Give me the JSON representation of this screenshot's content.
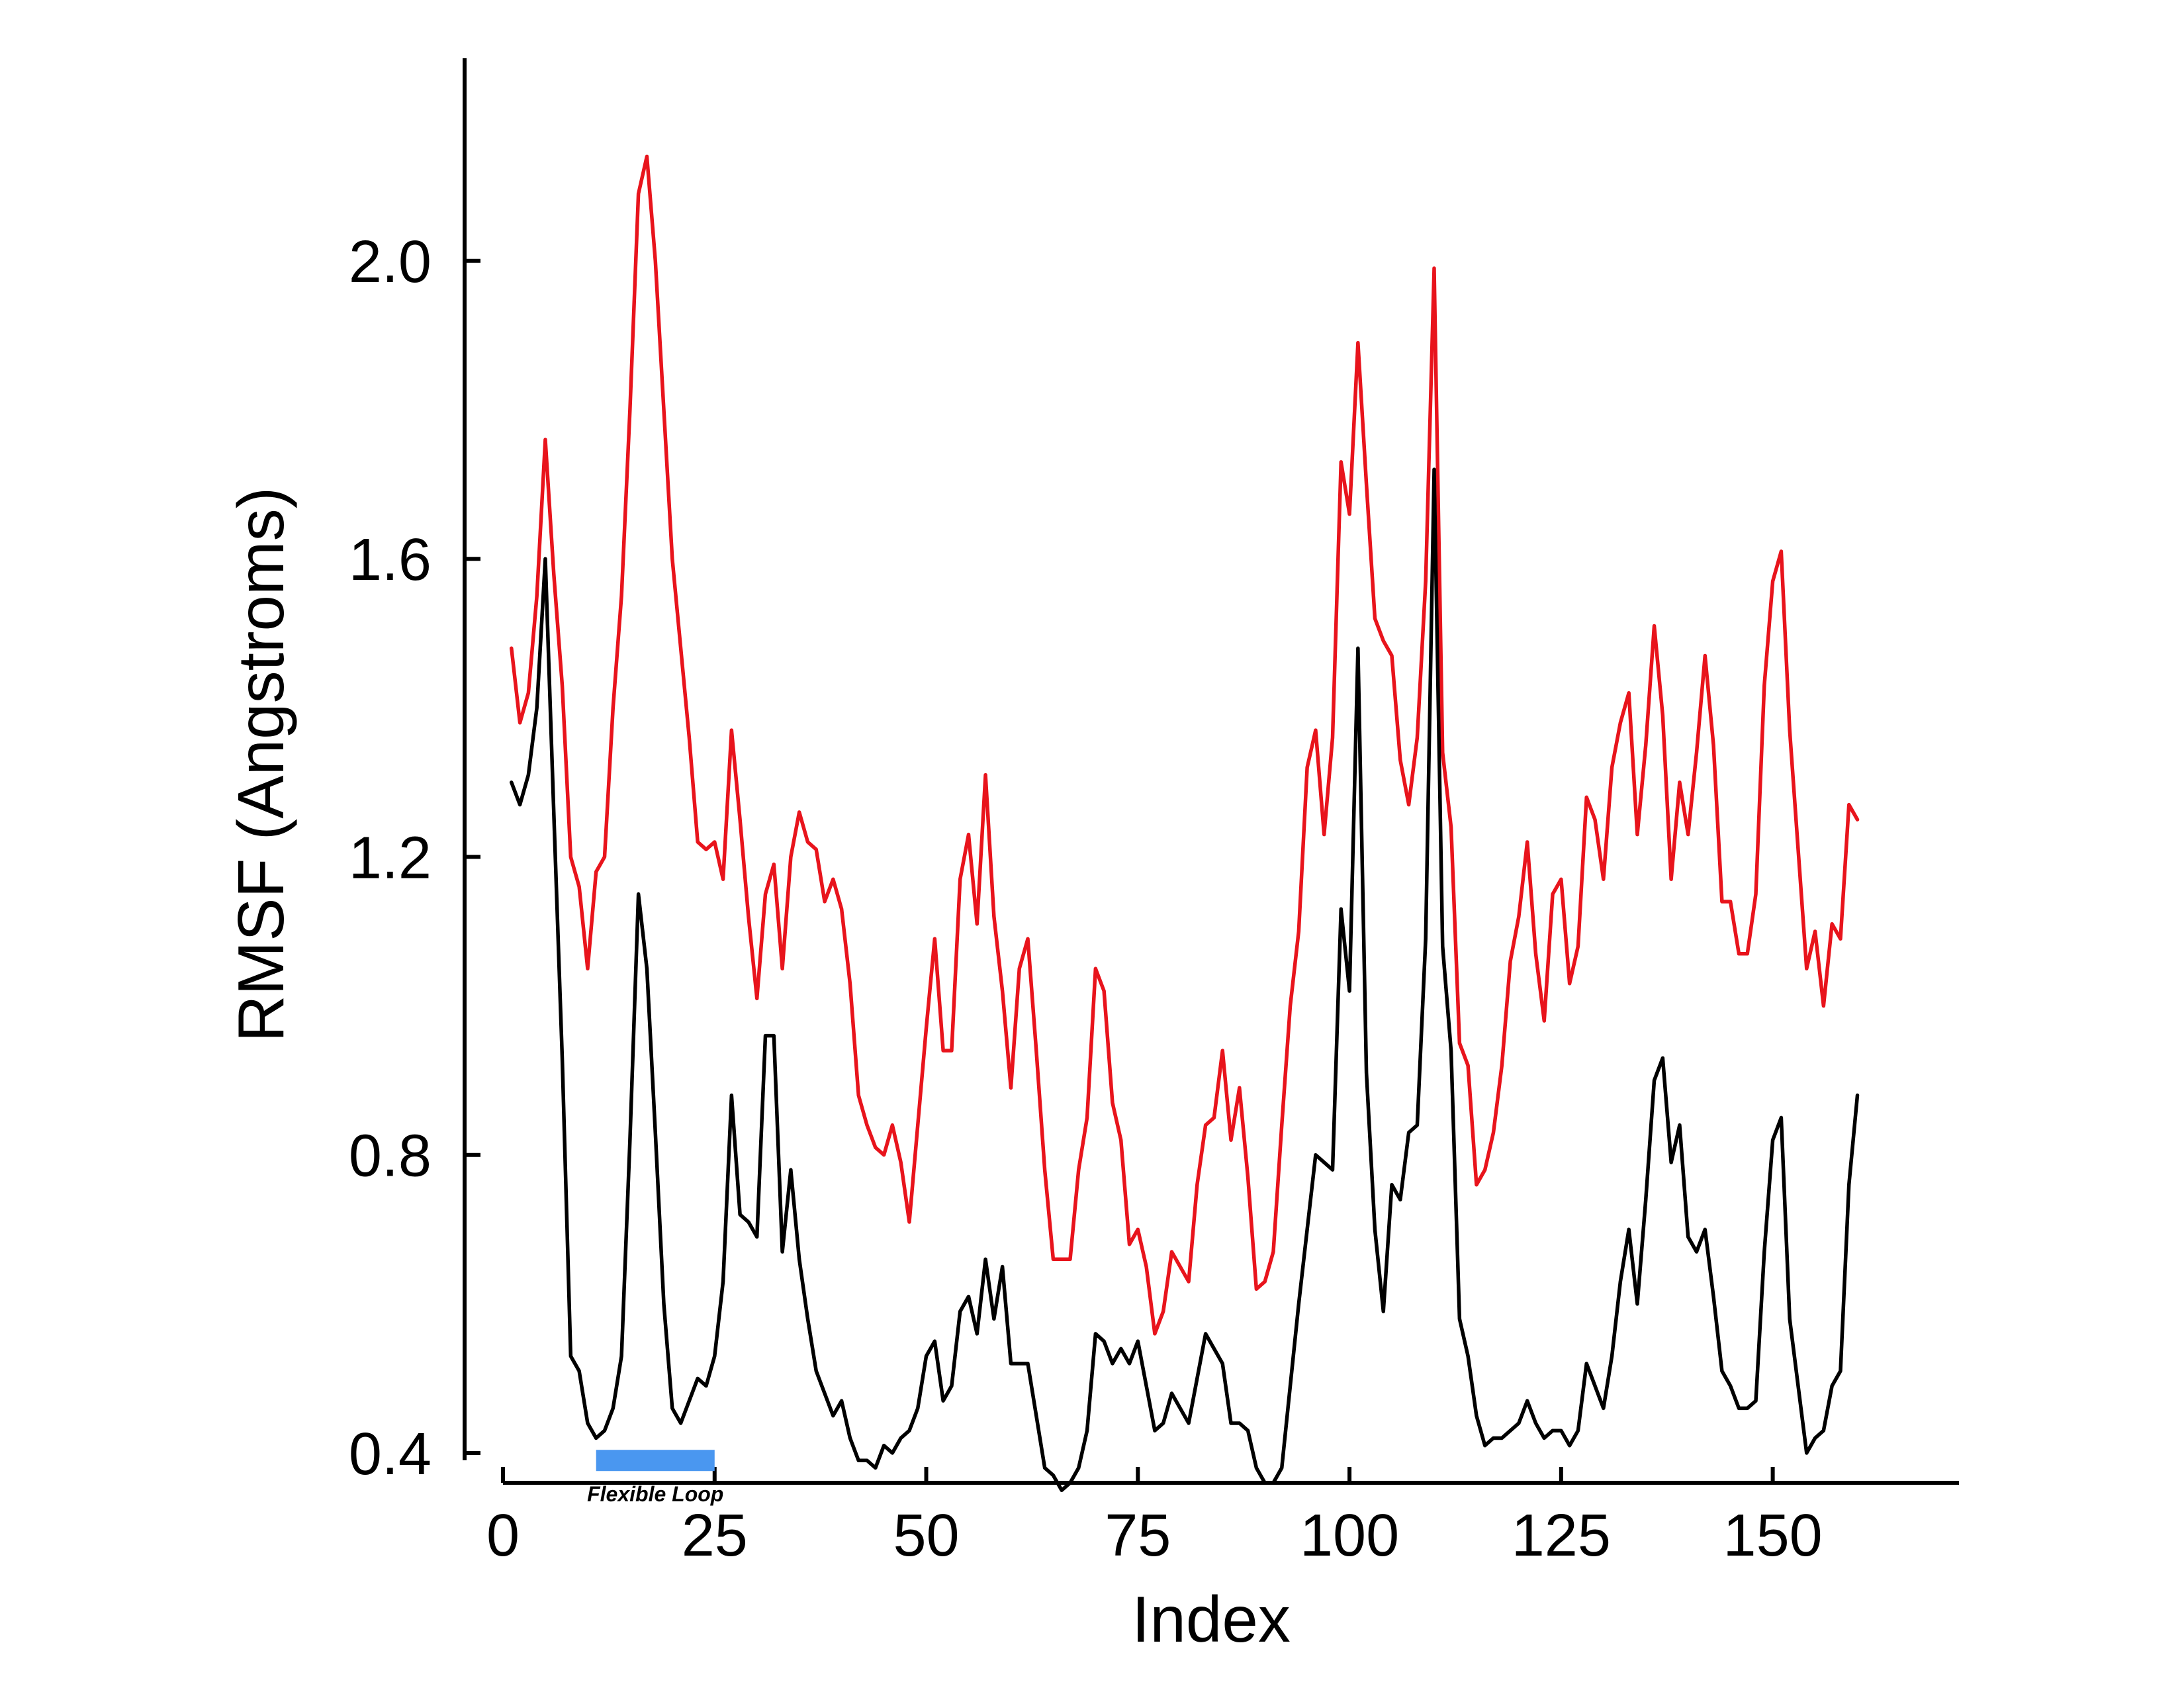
{
  "chart_data": {
    "type": "line",
    "title": "",
    "xlabel": "Index",
    "ylabel": "RMSF (Angstroms)",
    "xlim": [
      0,
      172
    ],
    "ylim": [
      0.36,
      2.27
    ],
    "xticks": [
      0,
      25,
      50,
      75,
      100,
      125,
      150
    ],
    "xtick_labels": [
      "0",
      "25",
      "50",
      "75",
      "100",
      "125",
      "150"
    ],
    "yticks": [
      0.4,
      0.8,
      1.2,
      1.6,
      2.0
    ],
    "ytick_labels": [
      "0.4",
      "0.8",
      "1.2",
      "1.6",
      "2.0"
    ],
    "grid": false,
    "legend": "none",
    "x_start": 1,
    "series": [
      {
        "color": "#e8141c",
        "values": [
          1.48,
          1.38,
          1.42,
          1.55,
          1.76,
          1.58,
          1.43,
          1.2,
          1.16,
          1.05,
          1.18,
          1.2,
          1.4,
          1.55,
          1.8,
          2.09,
          2.14,
          2.0,
          1.8,
          1.6,
          1.48,
          1.36,
          1.22,
          1.21,
          1.22,
          1.17,
          1.37,
          1.25,
          1.12,
          1.01,
          1.15,
          1.19,
          1.05,
          1.2,
          1.26,
          1.22,
          1.21,
          1.14,
          1.17,
          1.13,
          1.03,
          0.88,
          0.84,
          0.81,
          0.8,
          0.84,
          0.79,
          0.71,
          0.84,
          0.97,
          1.09,
          0.94,
          0.94,
          1.17,
          1.23,
          1.11,
          1.31,
          1.12,
          1.02,
          0.89,
          1.05,
          1.09,
          0.94,
          0.78,
          0.66,
          0.66,
          0.66,
          0.78,
          0.85,
          1.05,
          1.02,
          0.87,
          0.82,
          0.68,
          0.7,
          0.65,
          0.56,
          0.59,
          0.67,
          0.65,
          0.63,
          0.76,
          0.84,
          0.85,
          0.94,
          0.82,
          0.89,
          0.77,
          0.62,
          0.63,
          0.67,
          0.84,
          1.0,
          1.1,
          1.32,
          1.37,
          1.23,
          1.36,
          1.73,
          1.66,
          1.89,
          1.7,
          1.52,
          1.49,
          1.47,
          1.33,
          1.27,
          1.36,
          1.57,
          1.99,
          1.34,
          1.24,
          0.95,
          0.92,
          0.76,
          0.78,
          0.83,
          0.92,
          1.06,
          1.12,
          1.22,
          1.07,
          0.98,
          1.15,
          1.17,
          1.03,
          1.08,
          1.28,
          1.25,
          1.17,
          1.32,
          1.38,
          1.42,
          1.23,
          1.35,
          1.51,
          1.39,
          1.17,
          1.3,
          1.23,
          1.34,
          1.47,
          1.35,
          1.14,
          1.14,
          1.07,
          1.07,
          1.15,
          1.43,
          1.57,
          1.61,
          1.37,
          1.21,
          1.05,
          1.1,
          1.0,
          1.11,
          1.09,
          1.27,
          1.25
        ]
      },
      {
        "color": "#000000",
        "values": [
          1.3,
          1.27,
          1.31,
          1.4,
          1.6,
          1.26,
          0.93,
          0.53,
          0.51,
          0.44,
          0.42,
          0.43,
          0.46,
          0.53,
          0.82,
          1.15,
          1.05,
          0.83,
          0.6,
          0.46,
          0.44,
          0.47,
          0.5,
          0.49,
          0.53,
          0.63,
          0.88,
          0.72,
          0.71,
          0.69,
          0.96,
          0.96,
          0.67,
          0.78,
          0.66,
          0.58,
          0.51,
          0.48,
          0.45,
          0.47,
          0.42,
          0.39,
          0.39,
          0.38,
          0.41,
          0.4,
          0.42,
          0.43,
          0.46,
          0.53,
          0.55,
          0.47,
          0.49,
          0.59,
          0.61,
          0.56,
          0.66,
          0.58,
          0.65,
          0.52,
          0.52,
          0.52,
          0.45,
          0.38,
          0.37,
          0.35,
          0.36,
          0.38,
          0.43,
          0.56,
          0.55,
          0.52,
          0.54,
          0.52,
          0.55,
          0.49,
          0.43,
          0.44,
          0.48,
          0.46,
          0.44,
          0.5,
          0.56,
          0.54,
          0.52,
          0.44,
          0.44,
          0.43,
          0.38,
          0.36,
          0.36,
          0.38,
          0.49,
          0.6,
          0.7,
          0.8,
          0.79,
          0.78,
          1.13,
          1.02,
          1.48,
          0.91,
          0.7,
          0.59,
          0.76,
          0.74,
          0.83,
          0.84,
          1.09,
          1.72,
          1.08,
          0.94,
          0.58,
          0.53,
          0.45,
          0.41,
          0.42,
          0.42,
          0.43,
          0.44,
          0.47,
          0.44,
          0.42,
          0.43,
          0.43,
          0.41,
          0.43,
          0.52,
          0.49,
          0.46,
          0.53,
          0.63,
          0.7,
          0.6,
          0.74,
          0.9,
          0.93,
          0.79,
          0.84,
          0.69,
          0.67,
          0.7,
          0.61,
          0.51,
          0.49,
          0.46,
          0.46,
          0.47,
          0.67,
          0.82,
          0.85,
          0.58,
          0.49,
          0.4,
          0.42,
          0.43,
          0.49,
          0.51,
          0.76,
          0.88
        ]
      }
    ],
    "annotations": [
      {
        "text": "Flexible Loop",
        "x_range": [
          11,
          25
        ],
        "y": 0.39,
        "color": "#4a97f0"
      }
    ]
  }
}
